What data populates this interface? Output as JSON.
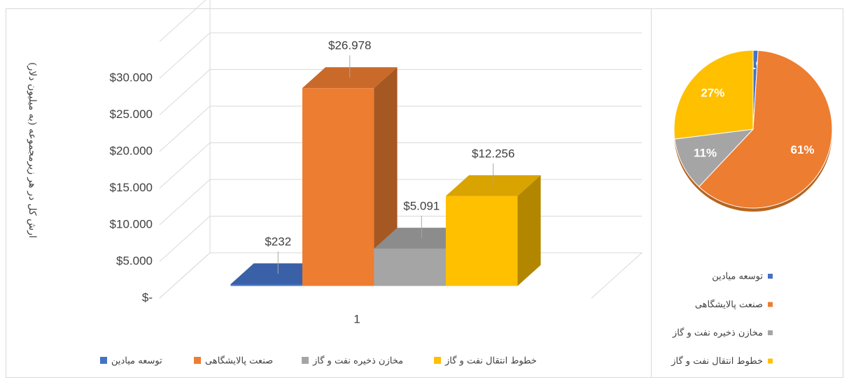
{
  "chart_data": [
    {
      "type": "bar3d",
      "y_label": "ارش کل در هر زیرمجموعه (به میلیون دلار)",
      "categories": [
        "1"
      ],
      "series": [
        {
          "name": "توسعه میادین",
          "color": "#4472c4",
          "values": [
            232
          ],
          "value_labels": [
            "$232"
          ]
        },
        {
          "name": "صنعت پالایشگاهی",
          "color": "#ed7d31",
          "values": [
            26978
          ],
          "value_labels": [
            "$26.978"
          ]
        },
        {
          "name": "مخازن ذخیره نفت و گاز",
          "color": "#a5a5a5",
          "values": [
            5091
          ],
          "value_labels": [
            "$5.091"
          ]
        },
        {
          "name": "خطوط انتقال نفت و گاز",
          "color": "#ffc000",
          "values": [
            12256
          ],
          "value_labels": [
            "$12.256"
          ]
        }
      ],
      "ylim": [
        0,
        35000
      ],
      "yticks": [
        {
          "value": 0,
          "label": "$-"
        },
        {
          "value": 5000,
          "label": "$5.000"
        },
        {
          "value": 10000,
          "label": "$10.000"
        },
        {
          "value": 15000,
          "label": "$15.000"
        },
        {
          "value": 20000,
          "label": "$20.000"
        },
        {
          "value": 25000,
          "label": "$25.000"
        },
        {
          "value": 30000,
          "label": "$30.000"
        }
      ],
      "grid": true,
      "legend": "bottom"
    },
    {
      "type": "pie",
      "categories": [
        "توسعه میادین",
        "صنعت پالایشگاهی",
        "مخازن ذخیره نفت و گاز",
        "خطوط انتقال نفت و گاز"
      ],
      "values": [
        1,
        61,
        11,
        27
      ],
      "value_labels": [
        "1%",
        "61%",
        "11%",
        "27%"
      ],
      "colors": [
        "#4472c4",
        "#ed7d31",
        "#a5a5a5",
        "#ffc000"
      ],
      "legend": "bottom"
    }
  ]
}
